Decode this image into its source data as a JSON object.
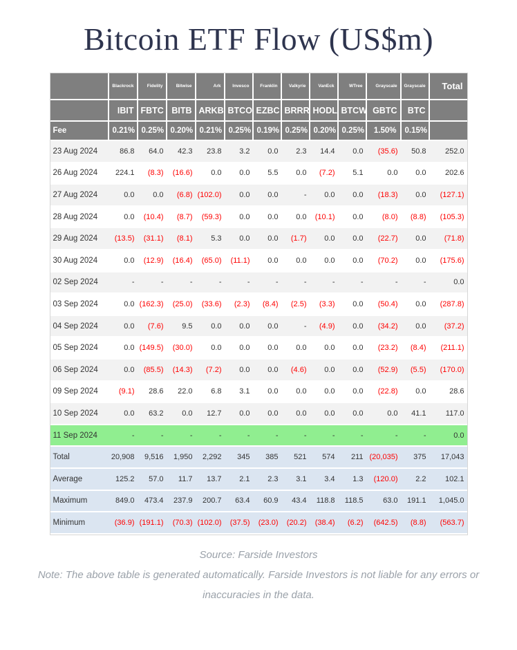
{
  "title": "Bitcoin ETF Flow (US$m)",
  "colors": {
    "negative": "#fe0000",
    "header_bg": "#7f7f7f",
    "header_text": "#ffffff",
    "stripe_bg": "#f2f2f2",
    "green_row_bg": "#90ee90",
    "summary_row_bg": "#dbe5f1",
    "title_color": "#2e344e",
    "footer_color": "#9aa1a9",
    "body_text": "#333333"
  },
  "chart_data": {
    "type": "table",
    "title": "Bitcoin ETF Flow (US$m)",
    "providers": [
      "Blackrock",
      "Fidelity",
      "Bitwise",
      "Ark",
      "Invesco",
      "Franklin",
      "Valkyrie",
      "VanEck",
      "WTree",
      "Grayscale",
      "Grayscale"
    ],
    "tickers": [
      "IBIT",
      "FBTC",
      "BITB",
      "ARKB",
      "BTCO",
      "EZBC",
      "BRRR",
      "HODL",
      "BTCW",
      "GBTC",
      "BTC"
    ],
    "total_label": "Total",
    "fee_label": "Fee",
    "fees": [
      "0.21%",
      "0.25%",
      "0.20%",
      "0.21%",
      "0.25%",
      "0.19%",
      "0.25%",
      "0.20%",
      "0.25%",
      "1.50%",
      "0.15%"
    ],
    "rows": [
      {
        "label": "23 Aug 2024",
        "values": [
          "86.8",
          "64.0",
          "42.3",
          "23.8",
          "3.2",
          "0.0",
          "2.3",
          "14.4",
          "0.0",
          "(35.6)",
          "50.8",
          "252.0"
        ]
      },
      {
        "label": "26 Aug 2024",
        "values": [
          "224.1",
          "(8.3)",
          "(16.6)",
          "0.0",
          "0.0",
          "5.5",
          "0.0",
          "(7.2)",
          "5.1",
          "0.0",
          "0.0",
          "202.6"
        ]
      },
      {
        "label": "27 Aug 2024",
        "values": [
          "0.0",
          "0.0",
          "(6.8)",
          "(102.0)",
          "0.0",
          "0.0",
          "-",
          "0.0",
          "0.0",
          "(18.3)",
          "0.0",
          "(127.1)"
        ]
      },
      {
        "label": "28 Aug 2024",
        "values": [
          "0.0",
          "(10.4)",
          "(8.7)",
          "(59.3)",
          "0.0",
          "0.0",
          "0.0",
          "(10.1)",
          "0.0",
          "(8.0)",
          "(8.8)",
          "(105.3)"
        ]
      },
      {
        "label": "29 Aug 2024",
        "values": [
          "(13.5)",
          "(31.1)",
          "(8.1)",
          "5.3",
          "0.0",
          "0.0",
          "(1.7)",
          "0.0",
          "0.0",
          "(22.7)",
          "0.0",
          "(71.8)"
        ]
      },
      {
        "label": "30 Aug 2024",
        "values": [
          "0.0",
          "(12.9)",
          "(16.4)",
          "(65.0)",
          "(11.1)",
          "0.0",
          "0.0",
          "0.0",
          "0.0",
          "(70.2)",
          "0.0",
          "(175.6)"
        ]
      },
      {
        "label": "02 Sep 2024",
        "values": [
          "-",
          "-",
          "-",
          "-",
          "-",
          "-",
          "-",
          "-",
          "-",
          "-",
          "-",
          "0.0"
        ]
      },
      {
        "label": "03 Sep 2024",
        "values": [
          "0.0",
          "(162.3)",
          "(25.0)",
          "(33.6)",
          "(2.3)",
          "(8.4)",
          "(2.5)",
          "(3.3)",
          "0.0",
          "(50.4)",
          "0.0",
          "(287.8)"
        ]
      },
      {
        "label": "04 Sep 2024",
        "values": [
          "0.0",
          "(7.6)",
          "9.5",
          "0.0",
          "0.0",
          "0.0",
          "-",
          "(4.9)",
          "0.0",
          "(34.2)",
          "0.0",
          "(37.2)"
        ]
      },
      {
        "label": "05 Sep 2024",
        "values": [
          "0.0",
          "(149.5)",
          "(30.0)",
          "0.0",
          "0.0",
          "0.0",
          "0.0",
          "0.0",
          "0.0",
          "(23.2)",
          "(8.4)",
          "(211.1)"
        ]
      },
      {
        "label": "06 Sep 2024",
        "values": [
          "0.0",
          "(85.5)",
          "(14.3)",
          "(7.2)",
          "0.0",
          "0.0",
          "(4.6)",
          "0.0",
          "0.0",
          "(52.9)",
          "(5.5)",
          "(170.0)"
        ]
      },
      {
        "label": "09 Sep 2024",
        "values": [
          "(9.1)",
          "28.6",
          "22.0",
          "6.8",
          "3.1",
          "0.0",
          "0.0",
          "0.0",
          "0.0",
          "(22.8)",
          "0.0",
          "28.6"
        ]
      },
      {
        "label": "10 Sep 2024",
        "values": [
          "0.0",
          "63.2",
          "0.0",
          "12.7",
          "0.0",
          "0.0",
          "0.0",
          "0.0",
          "0.0",
          "0.0",
          "41.1",
          "117.0"
        ]
      },
      {
        "label": "11 Sep 2024",
        "values": [
          "-",
          "-",
          "-",
          "-",
          "-",
          "-",
          "-",
          "-",
          "-",
          "-",
          "-",
          "0.0"
        ],
        "highlight": "green"
      }
    ],
    "summary_rows": [
      {
        "label": "Total",
        "values": [
          "20,908",
          "9,516",
          "1,950",
          "2,292",
          "345",
          "385",
          "521",
          "574",
          "211",
          "(20,035)",
          "375",
          "17,043"
        ]
      },
      {
        "label": "Average",
        "values": [
          "125.2",
          "57.0",
          "11.7",
          "13.7",
          "2.1",
          "2.3",
          "3.1",
          "3.4",
          "1.3",
          "(120.0)",
          "2.2",
          "102.1"
        ]
      },
      {
        "label": "Maximum",
        "values": [
          "849.0",
          "473.4",
          "237.9",
          "200.7",
          "63.4",
          "60.9",
          "43.4",
          "118.8",
          "118.5",
          "63.0",
          "191.1",
          "1,045.0"
        ]
      },
      {
        "label": "Minimum",
        "values": [
          "(36.9)",
          "(191.1)",
          "(70.3)",
          "(102.0)",
          "(37.5)",
          "(23.0)",
          "(20.2)",
          "(38.4)",
          "(6.2)",
          "(642.5)",
          "(8.8)",
          "(563.7)"
        ]
      }
    ]
  },
  "footer": {
    "source": "Source: Farside Investors",
    "note": "Note: The above table is generated automatically. Farside Investors is not liable for any errors or inaccuracies in the data."
  }
}
